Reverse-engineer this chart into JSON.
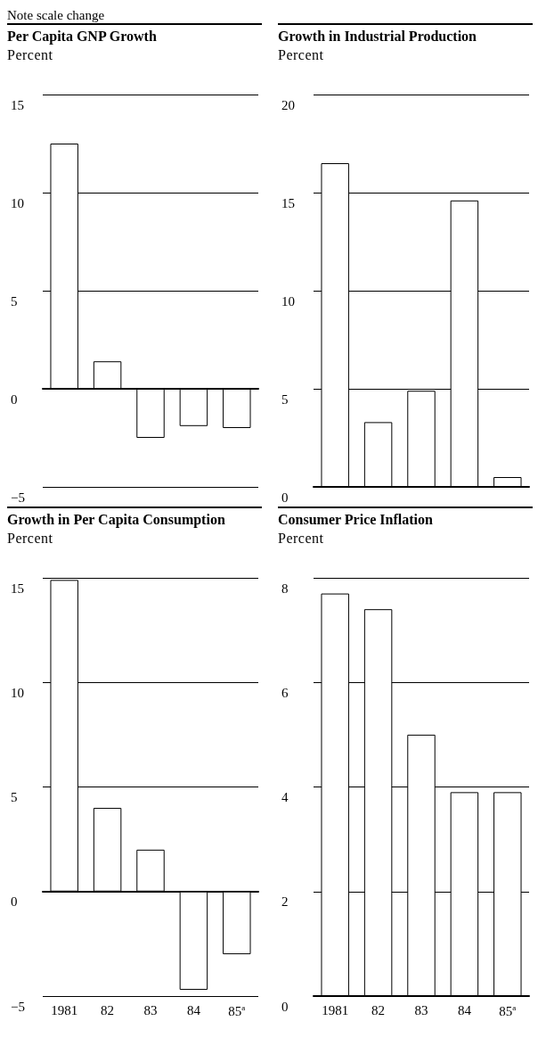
{
  "chart_data": [
    {
      "type": "bar",
      "title": "Per Capita GNP Growth",
      "ylabel": "Percent",
      "annotations": [
        "Note scale change"
      ],
      "categories": [
        null,
        null,
        null,
        null,
        null
      ],
      "values": [
        12.5,
        1.4,
        -2.5,
        -1.9,
        -2.0
      ],
      "color": "#ffffff",
      "ylim": [
        -5,
        15
      ],
      "yticks": [
        -5,
        0,
        5,
        10,
        15
      ],
      "grid": "y",
      "tick_labels": "y"
    },
    {
      "type": "bar",
      "title": "Growth in Industrial Production",
      "ylabel": "Percent",
      "categories": [
        null,
        null,
        null,
        null,
        null
      ],
      "values": [
        16.5,
        3.3,
        4.9,
        14.6,
        0.5
      ],
      "color": "#ffffff",
      "ylim": [
        0,
        20
      ],
      "yticks": [
        0,
        5,
        10,
        15,
        20
      ],
      "grid": "y",
      "tick_labels": "y"
    },
    {
      "type": "bar",
      "title": "Growth in Per Capita Consumption",
      "ylabel": "Percent",
      "categories": [
        "1981",
        "82",
        "83",
        "84",
        "85$^{a}$"
      ],
      "values": [
        14.9,
        4.0,
        2.0,
        -4.7,
        -3.0
      ],
      "color": "#ffffff",
      "ylim": [
        -5,
        15
      ],
      "yticks": [
        -5,
        0,
        5,
        10,
        15
      ],
      "grid": "y"
    },
    {
      "type": "bar",
      "title": "Consumer Price Inflation",
      "ylabel": "Percent",
      "categories": [
        "1981",
        "82",
        "83",
        "84",
        "85$^{a}$"
      ],
      "values": [
        7.7,
        7.4,
        5.0,
        3.9,
        3.9
      ],
      "color": "#ffffff",
      "ylim": [
        0,
        8
      ],
      "yticks": [
        0,
        2,
        4,
        6,
        8
      ],
      "grid": "y"
    }
  ]
}
